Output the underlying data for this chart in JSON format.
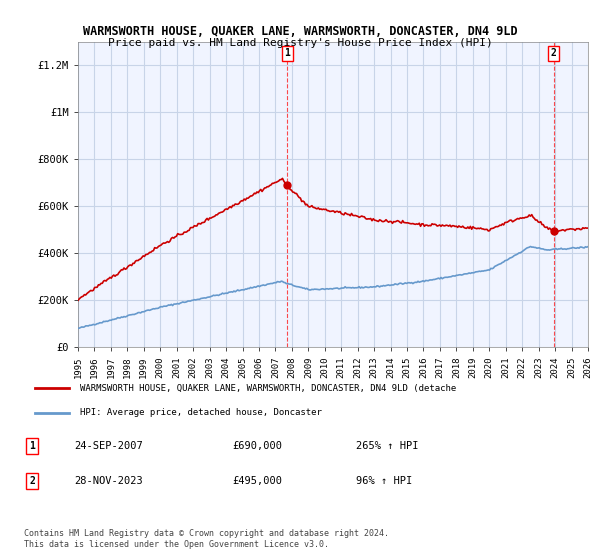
{
  "title": "WARMSWORTH HOUSE, QUAKER LANE, WARMSWORTH, DONCASTER, DN4 9LD",
  "subtitle": "Price paid vs. HM Land Registry's House Price Index (HPI)",
  "legend_line1": "WARMSWORTH HOUSE, QUAKER LANE, WARMSWORTH, DONCASTER, DN4 9LD (detache",
  "legend_line2": "HPI: Average price, detached house, Doncaster",
  "footnote": "Contains HM Land Registry data © Crown copyright and database right 2024.\nThis data is licensed under the Open Government Licence v3.0.",
  "annotation1_label": "1",
  "annotation1_date": "24-SEP-2007",
  "annotation1_price": "£690,000",
  "annotation1_hpi": "265% ↑ HPI",
  "annotation2_label": "2",
  "annotation2_date": "28-NOV-2023",
  "annotation2_price": "£495,000",
  "annotation2_hpi": "96% ↑ HPI",
  "ylim": [
    0,
    1300000
  ],
  "yticks": [
    0,
    200000,
    400000,
    600000,
    800000,
    1000000,
    1200000
  ],
  "ytick_labels": [
    "£0",
    "£200K",
    "£400K",
    "£600K",
    "£800K",
    "£1M",
    "£1.2M"
  ],
  "hpi_color": "#6699cc",
  "price_color": "#cc0000",
  "background_color": "#f0f4ff",
  "grid_color": "#c8d4e8",
  "sale1_x": 2007.73,
  "sale1_y": 690000,
  "sale2_x": 2023.91,
  "sale2_y": 495000,
  "xmin": 1995,
  "xmax": 2026
}
